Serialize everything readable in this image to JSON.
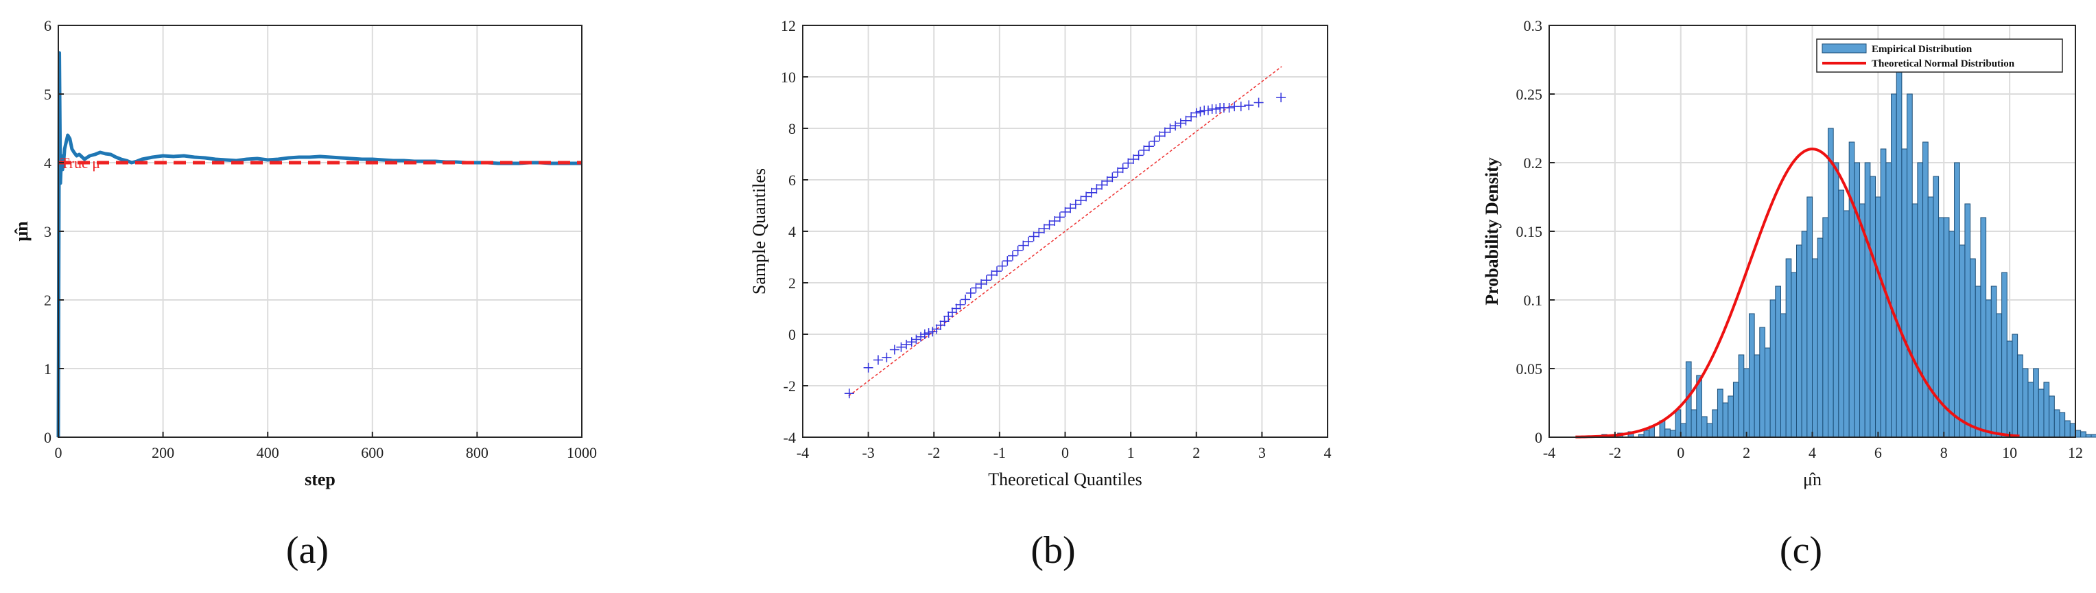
{
  "chart_data": [
    {
      "panel": "a",
      "type": "line",
      "xlabel": "step",
      "ylabel": "μ̂n",
      "xlim": [
        0,
        1000
      ],
      "ylim": [
        0,
        6
      ],
      "xticks": [
        0,
        200,
        400,
        600,
        800,
        1000
      ],
      "yticks": [
        0,
        1,
        2,
        3,
        4,
        5,
        6
      ],
      "grid": true,
      "annotation": "True μ",
      "series": [
        {
          "kind": "estimate",
          "color": "#1f77b4",
          "x": [
            0,
            2,
            4,
            6,
            8,
            10,
            12,
            15,
            18,
            22,
            26,
            30,
            35,
            40,
            50,
            60,
            70,
            80,
            90,
            100,
            110,
            120,
            130,
            140,
            150,
            160,
            180,
            200,
            220,
            240,
            260,
            280,
            300,
            320,
            340,
            360,
            380,
            400,
            420,
            440,
            460,
            480,
            500,
            520,
            540,
            560,
            580,
            600,
            620,
            640,
            660,
            680,
            700,
            720,
            740,
            760,
            780,
            800,
            820,
            840,
            860,
            880,
            900,
            920,
            940,
            960,
            980,
            1000
          ],
          "y": [
            0,
            5.6,
            3.7,
            4.1,
            3.9,
            4.0,
            4.2,
            4.3,
            4.4,
            4.35,
            4.2,
            4.15,
            4.1,
            4.12,
            4.05,
            4.1,
            4.12,
            4.15,
            4.13,
            4.12,
            4.08,
            4.05,
            4.03,
            4.0,
            4.02,
            4.05,
            4.08,
            4.1,
            4.09,
            4.1,
            4.08,
            4.07,
            4.05,
            4.04,
            4.03,
            4.05,
            4.06,
            4.04,
            4.05,
            4.07,
            4.08,
            4.08,
            4.09,
            4.08,
            4.07,
            4.06,
            4.05,
            4.05,
            4.04,
            4.03,
            4.03,
            4.02,
            4.02,
            4.02,
            4.01,
            4.01,
            4.0,
            4.0,
            4.0,
            3.99,
            3.99,
            3.99,
            4.0,
            4.0,
            3.99,
            3.99,
            3.99,
            3.99
          ]
        },
        {
          "kind": "true-mean",
          "color": "#ee2222",
          "x": [
            0,
            1000
          ],
          "y": [
            4,
            4
          ]
        }
      ]
    },
    {
      "panel": "b",
      "type": "scatter",
      "xlabel": "Theoretical Quantiles",
      "ylabel": "Sample Quantiles",
      "xlim": [
        -4,
        4
      ],
      "ylim": [
        -4,
        12
      ],
      "xticks": [
        -4,
        -3,
        -2,
        -1,
        0,
        1,
        2,
        3,
        4
      ],
      "yticks": [
        -4,
        -2,
        0,
        2,
        4,
        6,
        8,
        10,
        12
      ],
      "grid": true,
      "marker_color": "#3333dd",
      "reference_line": {
        "x": [
          -3.3,
          3.3
        ],
        "y": [
          -2.4,
          10.4
        ],
        "color": "#ee3333"
      },
      "points": {
        "x": [
          -3.29,
          -3.0,
          -2.85,
          -2.72,
          -2.6,
          -2.5,
          -2.42,
          -2.34,
          -2.27,
          -2.2,
          -2.14,
          -2.08,
          -2.02,
          -1.96,
          -1.9,
          -1.84,
          -1.78,
          -1.72,
          -1.66,
          -1.6,
          -1.52,
          -1.44,
          -1.36,
          -1.28,
          -1.2,
          -1.12,
          -1.04,
          -0.96,
          -0.88,
          -0.8,
          -0.72,
          -0.64,
          -0.56,
          -0.48,
          -0.4,
          -0.32,
          -0.24,
          -0.16,
          -0.08,
          0.0,
          0.08,
          0.16,
          0.24,
          0.32,
          0.4,
          0.48,
          0.56,
          0.64,
          0.72,
          0.8,
          0.88,
          0.96,
          1.04,
          1.12,
          1.2,
          1.28,
          1.36,
          1.44,
          1.52,
          1.6,
          1.68,
          1.76,
          1.84,
          1.92,
          2.0,
          2.06,
          2.12,
          2.18,
          2.24,
          2.3,
          2.36,
          2.42,
          2.5,
          2.58,
          2.68,
          2.8,
          2.95,
          3.29
        ],
        "y": [
          -2.3,
          -1.3,
          -1.0,
          -0.9,
          -0.6,
          -0.5,
          -0.4,
          -0.3,
          -0.2,
          -0.1,
          0.0,
          0.05,
          0.1,
          0.2,
          0.35,
          0.5,
          0.7,
          0.85,
          1.0,
          1.15,
          1.35,
          1.6,
          1.8,
          1.95,
          2.1,
          2.3,
          2.45,
          2.65,
          2.85,
          3.05,
          3.25,
          3.45,
          3.6,
          3.8,
          3.95,
          4.1,
          4.25,
          4.4,
          4.55,
          4.75,
          4.9,
          5.05,
          5.2,
          5.35,
          5.5,
          5.65,
          5.8,
          5.95,
          6.1,
          6.3,
          6.45,
          6.65,
          6.8,
          6.95,
          7.15,
          7.3,
          7.5,
          7.7,
          7.85,
          8.0,
          8.1,
          8.2,
          8.3,
          8.45,
          8.6,
          8.65,
          8.7,
          8.7,
          8.75,
          8.75,
          8.8,
          8.8,
          8.8,
          8.85,
          8.85,
          8.9,
          9.0,
          9.2
        ]
      }
    },
    {
      "panel": "c",
      "type": "bar",
      "xlabel": "μ̂n",
      "ylabel": "Probability Density",
      "xlim": [
        -4,
        12
      ],
      "ylim": [
        0,
        0.3
      ],
      "xticks": [
        -4,
        -2,
        0,
        2,
        4,
        6,
        8,
        10,
        12
      ],
      "yticks": [
        0,
        0.05,
        0.1,
        0.15,
        0.2,
        0.25,
        0.3
      ],
      "grid": true,
      "legend": {
        "position": "top-right",
        "entries": [
          "Empirical Distribution",
          "Theoretical Normal Distribution"
        ]
      },
      "bar_color": "#5a9fd4",
      "bins": {
        "start": -2.4,
        "width": 0.16,
        "values": [
          0.002,
          0,
          0,
          0.003,
          0,
          0.004,
          0,
          0.002,
          0.005,
          0.008,
          0,
          0.012,
          0.006,
          0.005,
          0.02,
          0.01,
          0.055,
          0.02,
          0.045,
          0.015,
          0.01,
          0.02,
          0.035,
          0.025,
          0.03,
          0.04,
          0.06,
          0.05,
          0.09,
          0.06,
          0.08,
          0.065,
          0.1,
          0.11,
          0.09,
          0.13,
          0.12,
          0.14,
          0.15,
          0.175,
          0.13,
          0.145,
          0.16,
          0.225,
          0.2,
          0.18,
          0.165,
          0.215,
          0.2,
          0.17,
          0.2,
          0.19,
          0.175,
          0.21,
          0.2,
          0.25,
          0.29,
          0.21,
          0.25,
          0.17,
          0.2,
          0.215,
          0.175,
          0.19,
          0.16,
          0.16,
          0.15,
          0.2,
          0.14,
          0.17,
          0.13,
          0.11,
          0.16,
          0.1,
          0.11,
          0.09,
          0.12,
          0.07,
          0.075,
          0.06,
          0.05,
          0.04,
          0.05,
          0.035,
          0.04,
          0.03,
          0.02,
          0.018,
          0.012,
          0.01,
          0.005,
          0.004,
          0.002,
          0.002,
          0.001,
          0.002
        ]
      },
      "normal_curve": {
        "mean": 4.0,
        "sd": 1.9,
        "x_range": [
          -3.2,
          10.3
        ],
        "color": "#ee1111"
      }
    }
  ],
  "panel_labels": [
    "(a)",
    "(b)",
    "(c)"
  ]
}
